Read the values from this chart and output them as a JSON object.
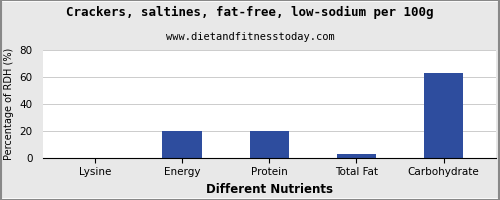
{
  "title": "Crackers, saltines, fat-free, low-sodium per 100g",
  "subtitle": "www.dietandfitnesstoday.com",
  "xlabel": "Different Nutrients",
  "ylabel": "Percentage of RDH (%)",
  "categories": [
    "Lysine",
    "Energy",
    "Protein",
    "Total Fat",
    "Carbohydrate"
  ],
  "values": [
    0,
    20,
    19.5,
    2.5,
    63
  ],
  "bar_color": "#2e4d9e",
  "ylim": [
    0,
    80
  ],
  "yticks": [
    0,
    20,
    40,
    60,
    80
  ],
  "background_color": "#e8e8e8",
  "plot_bg_color": "#ffffff",
  "title_fontsize": 9,
  "subtitle_fontsize": 7.5,
  "xlabel_fontsize": 8.5,
  "ylabel_fontsize": 7,
  "tick_fontsize": 7.5
}
